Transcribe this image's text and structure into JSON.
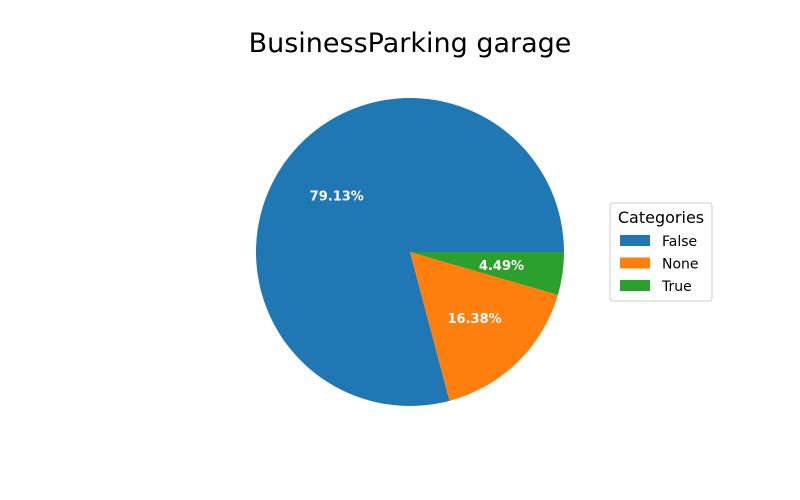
{
  "chart_data": {
    "type": "pie",
    "title": "BusinessParking garage",
    "legend_title": "Categories",
    "legend_position": "center-right",
    "categories": [
      "False",
      "None",
      "True"
    ],
    "values": [
      79.13,
      16.38,
      4.49
    ],
    "labels": [
      "79.13%",
      "16.38%",
      "4.49%"
    ],
    "colors": [
      "#1f77b4",
      "#ff7f0e",
      "#2ca02c"
    ]
  }
}
